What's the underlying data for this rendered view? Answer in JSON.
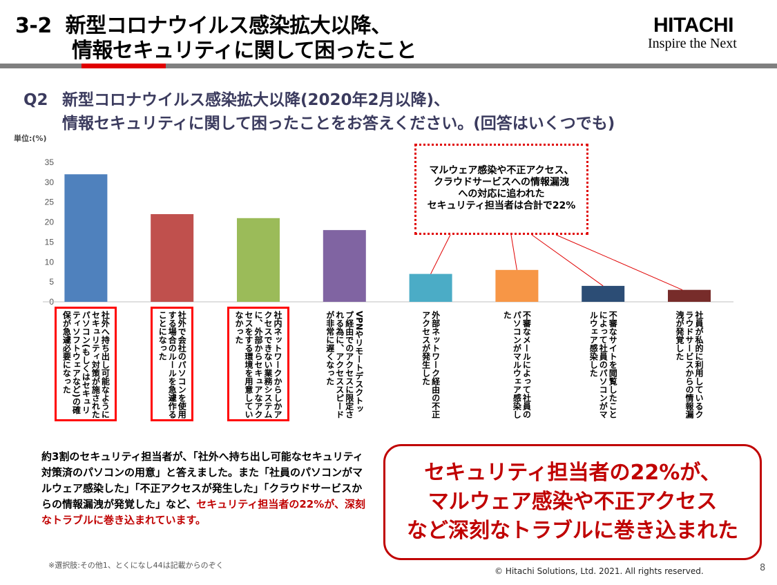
{
  "header": {
    "number": "3-2",
    "title_line1": "新型コロナウイルス感染拡大以降、",
    "title_line2": "情報セキュリティに関して困ったこと"
  },
  "logo": {
    "brand": "HITACHI",
    "tagline": "Inspire the Next"
  },
  "question": {
    "label": "Q2",
    "line1": "新型コロナウイルス感染拡大以降(2020年2月以降)、",
    "line2": "情報セキュリティに関して困ったことをお答えください。(回答はいくつでも)"
  },
  "chart_data": {
    "type": "bar",
    "unit_label": "単位:(%)",
    "ylim": [
      0,
      35
    ],
    "yticks": [
      0,
      5,
      10,
      15,
      20,
      25,
      30,
      35
    ],
    "categories": [
      "社外へ持ち出し可能なようにセキュリティ対策が施されたパソコン(もしくはセキュリティソフトウェアなど)の確保が急遽必要になった",
      "社外で会社のパソコンを使用する場合のルールを急遽作ることになった",
      "社内ネットワークからしかアクセスできない業務システムに、外部からセキュアなアクセスをする環境を用意していなかった",
      "VPNやリモートデスクトップ経由でのアクセスに限定される為に、アクセススピードが非常に遅くなった",
      "外部ネットワーク経由の不正アクセスが発生した",
      "不審なメールによって社員のパソコンがマルウェア感染した",
      "不審なサイトを閲覧したことによって社員のパソコンがマルウェア感染した",
      "社員が私的に利用しているクラウドサービスからの情報漏洩が発覚した"
    ],
    "values": [
      32,
      22,
      21,
      18,
      7,
      8,
      4,
      3
    ],
    "colors": [
      "#4f81bd",
      "#c0504d",
      "#9bbb59",
      "#8064a2",
      "#4bacc6",
      "#f79646",
      "#2c4d75",
      "#772c2a"
    ],
    "highlighted_categories": [
      0,
      1,
      2
    ],
    "grid": false
  },
  "callout": {
    "line1": "マルウェア感染や不正アクセス、",
    "line2": "クラウドサービスへの情報漏洩",
    "line3": "への対応に追われた",
    "line4": "セキュリティ担当者は合計で22%"
  },
  "summary": {
    "text": "約3割のセキュリティ担当者が、「社外へ持ち出し可能なセキュリティ対策済のパソコンの用意」と答えました。また「社員のパソコンがマルウェア感染した」「不正アクセスが発生した」「クラウドサービスからの情報漏洩が発覚した」など、",
    "highlight": "セキュリティ担当者の22%が、深刻なトラブルに巻き込まれています。"
  },
  "conclusion": {
    "line1": "セキュリティ担当者の22%が、",
    "line2": "マルウェア感染や不正アクセス",
    "line3": "など深刻なトラブルに巻き込まれた"
  },
  "footer": {
    "note": "※選択肢:その他1、とくになし44は記載からのぞく",
    "copyright": "© Hitachi Solutions, Ltd. 2021. All rights reserved.",
    "page": "8"
  },
  "colors": {
    "accent": "#c00000",
    "header_bar": "#7f7f7f",
    "question_text": "#3b3b5e"
  }
}
